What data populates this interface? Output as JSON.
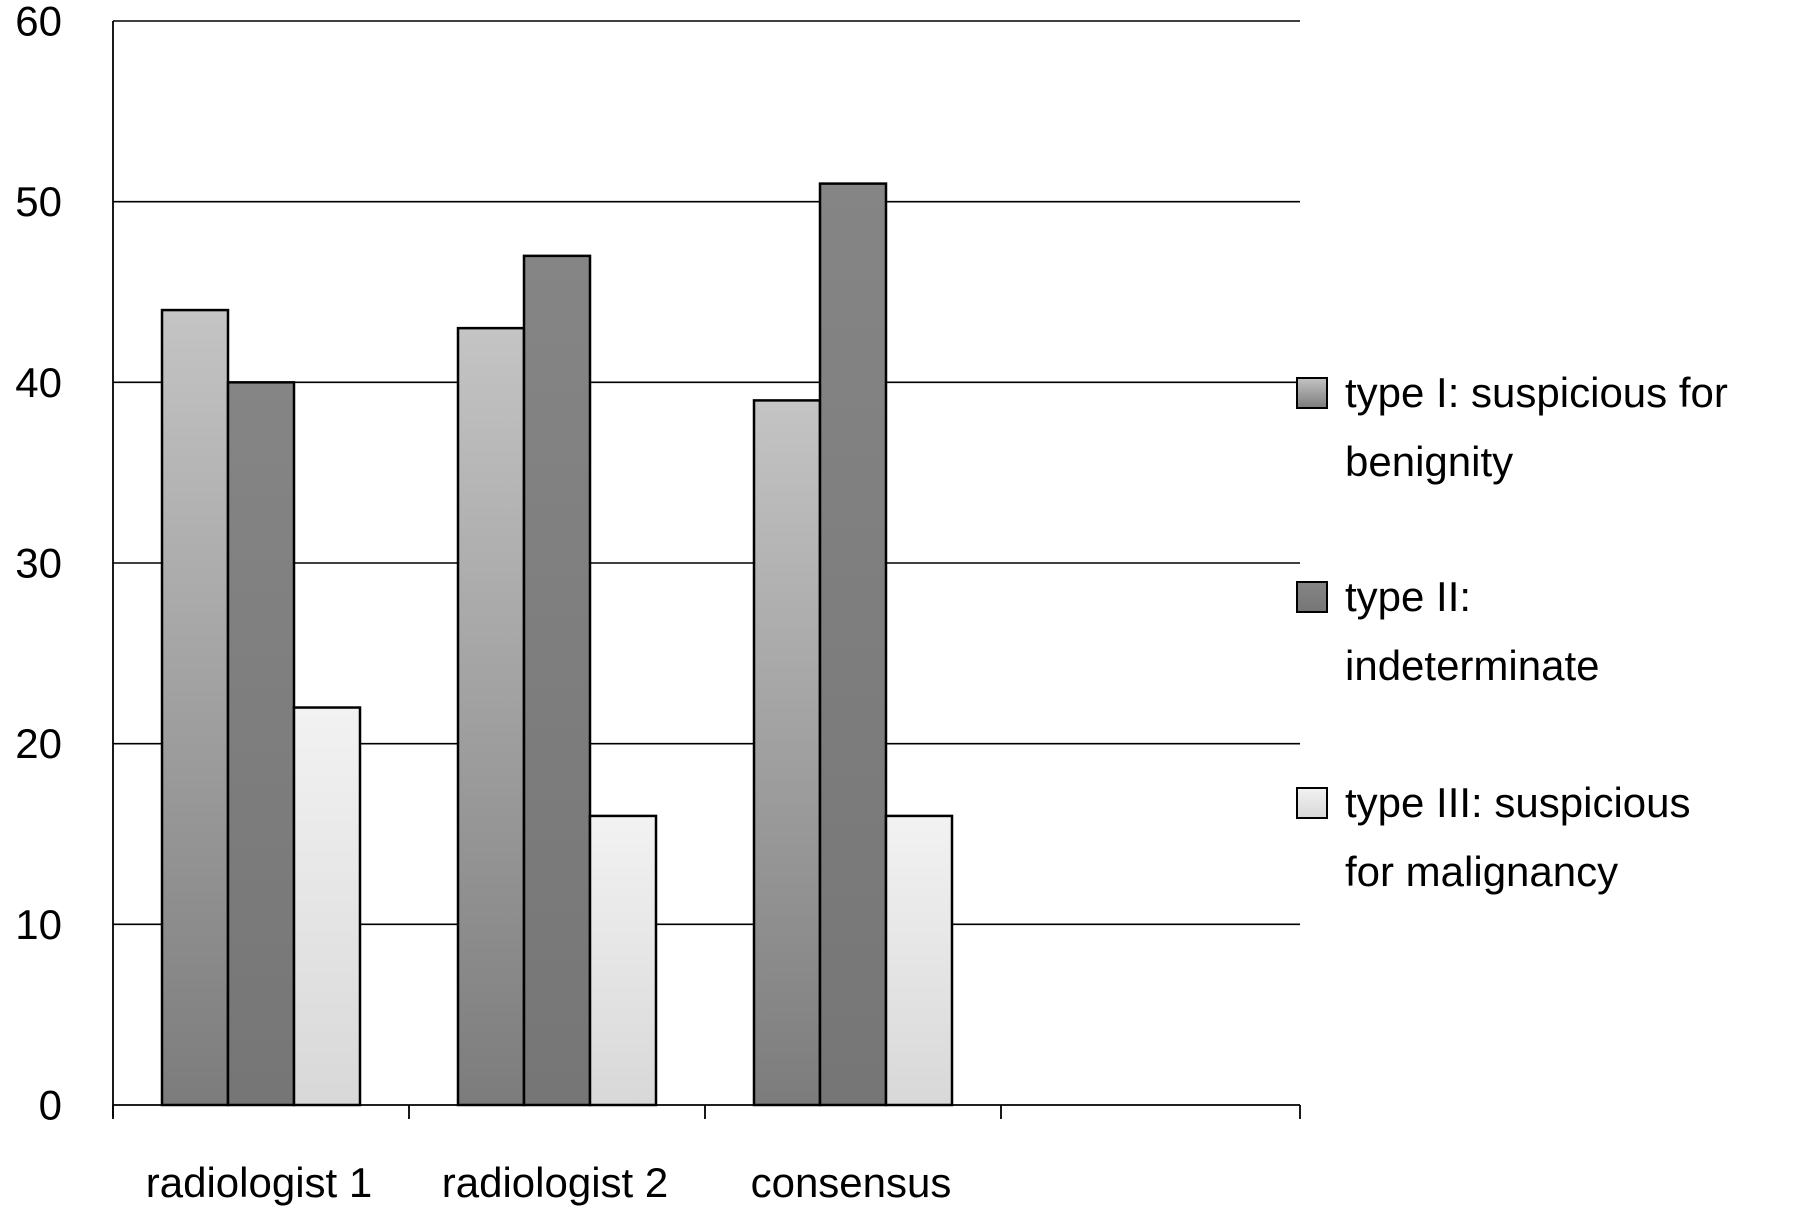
{
  "chart_data": {
    "type": "bar",
    "categories": [
      "radiologist 1",
      "radiologist 2",
      "consensus"
    ],
    "series": [
      {
        "name": "type I: suspicious for benignity",
        "values": [
          44,
          43,
          39
        ],
        "color": "#a9a9a9"
      },
      {
        "name": "type II: indeterminate",
        "values": [
          40,
          47,
          51
        ],
        "color": "#7c7c7c"
      },
      {
        "name": "type III: suspicious for malignancy",
        "values": [
          22,
          16,
          16
        ],
        "color": "#e6e6e6"
      }
    ],
    "legend": [
      {
        "lines": [
          "type I: suspicious for",
          "benignity"
        ]
      },
      {
        "lines": [
          "type II:",
          "indeterminate"
        ]
      },
      {
        "lines": [
          "type III: suspicious",
          "for malignancy"
        ]
      }
    ],
    "yticks": [
      "0",
      "10",
      "20",
      "30",
      "40",
      "50",
      "60"
    ],
    "ylim": [
      0,
      60
    ],
    "grid": true,
    "legend_position": "right",
    "title": "",
    "xlabel": "",
    "ylabel": ""
  }
}
